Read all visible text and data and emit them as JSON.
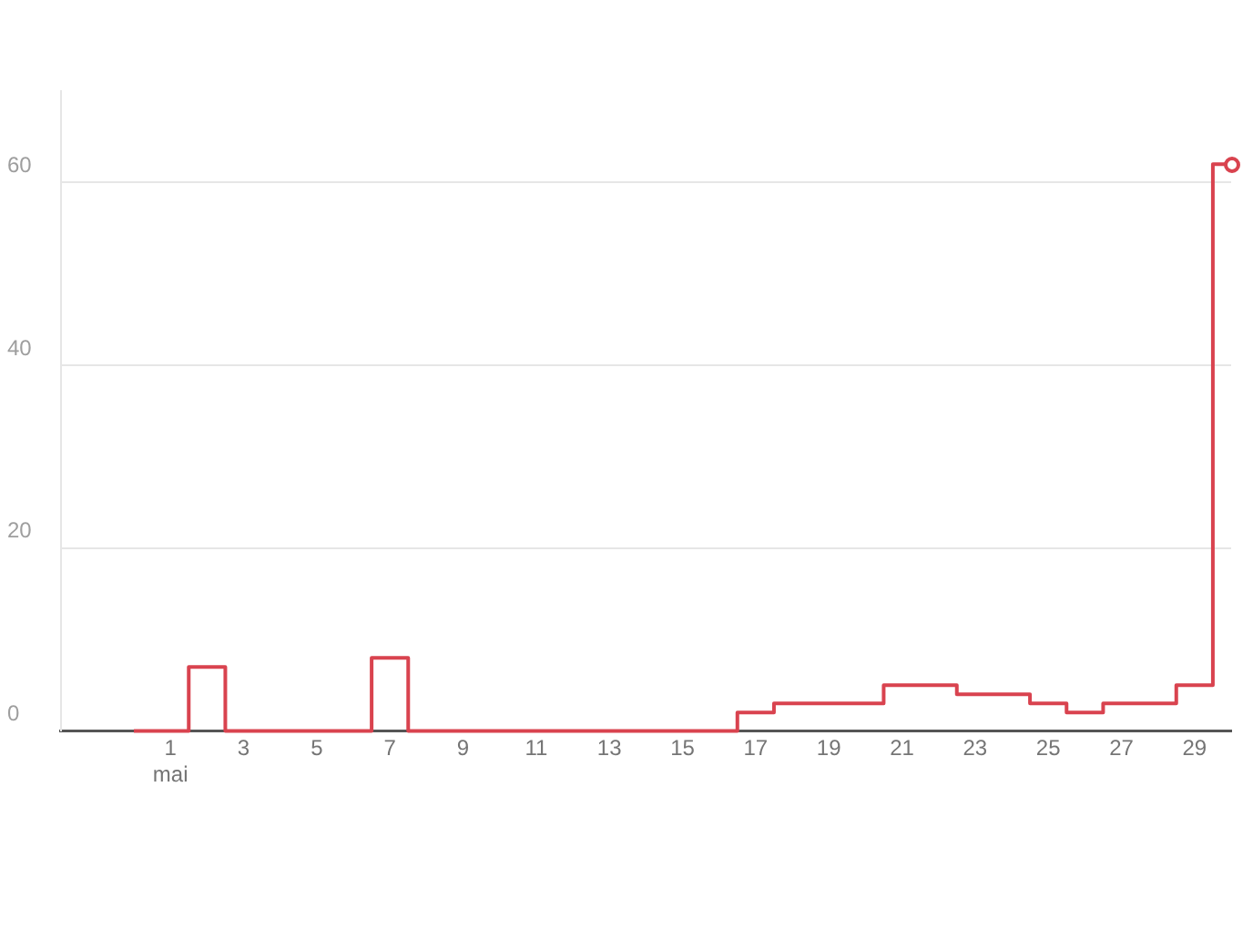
{
  "chart_data": {
    "type": "step",
    "x": [
      "--04-30",
      "--05-01",
      "--05-02",
      "--05-03",
      "--05-04",
      "--05-05",
      "--05-06",
      "--05-07",
      "--05-08",
      "--05-09",
      "--05-10",
      "--05-11",
      "--05-12",
      "--05-13",
      "--05-14",
      "--05-15",
      "--05-16",
      "--05-17",
      "--05-18",
      "--05-19",
      "--05-20",
      "--05-21",
      "--05-22",
      "--05-23",
      "--05-24",
      "--05-25",
      "--05-26",
      "--05-27",
      "--05-28",
      "--05-29",
      "--05-30"
    ],
    "series": [
      {
        "color": "#d9434f",
        "values": [
          0,
          0,
          7,
          0,
          0,
          0,
          0,
          8,
          0,
          0,
          0,
          0,
          0,
          0,
          0,
          0,
          0,
          2,
          3,
          3,
          3,
          5,
          5,
          4,
          4,
          3,
          2,
          3,
          3,
          5,
          62
        ]
      }
    ],
    "xlim": [
      "--04-28",
      "--05-30"
    ],
    "xticks": [
      {
        "value": "--05-01",
        "label": "1 mai"
      },
      {
        "value": "--05-03",
        "label": "3"
      },
      {
        "value": "--05-05",
        "label": "5"
      },
      {
        "value": "--05-07",
        "label": "7"
      },
      {
        "value": "--05-09",
        "label": "9"
      },
      {
        "value": "--05-11",
        "label": "11"
      },
      {
        "value": "--05-13",
        "label": "13"
      },
      {
        "value": "--05-15",
        "label": "15"
      },
      {
        "value": "--05-17",
        "label": "17"
      },
      {
        "value": "--05-19",
        "label": "19"
      },
      {
        "value": "--05-21",
        "label": "21"
      },
      {
        "value": "--05-23",
        "label": "23"
      },
      {
        "value": "--05-25",
        "label": "25"
      },
      {
        "value": "--05-27",
        "label": "27"
      },
      {
        "value": "--05-29",
        "label": "29"
      }
    ],
    "ylim": [
      0,
      70
    ],
    "yticks": [
      0,
      20,
      40,
      60
    ],
    "grid": "y",
    "legend": false
  }
}
